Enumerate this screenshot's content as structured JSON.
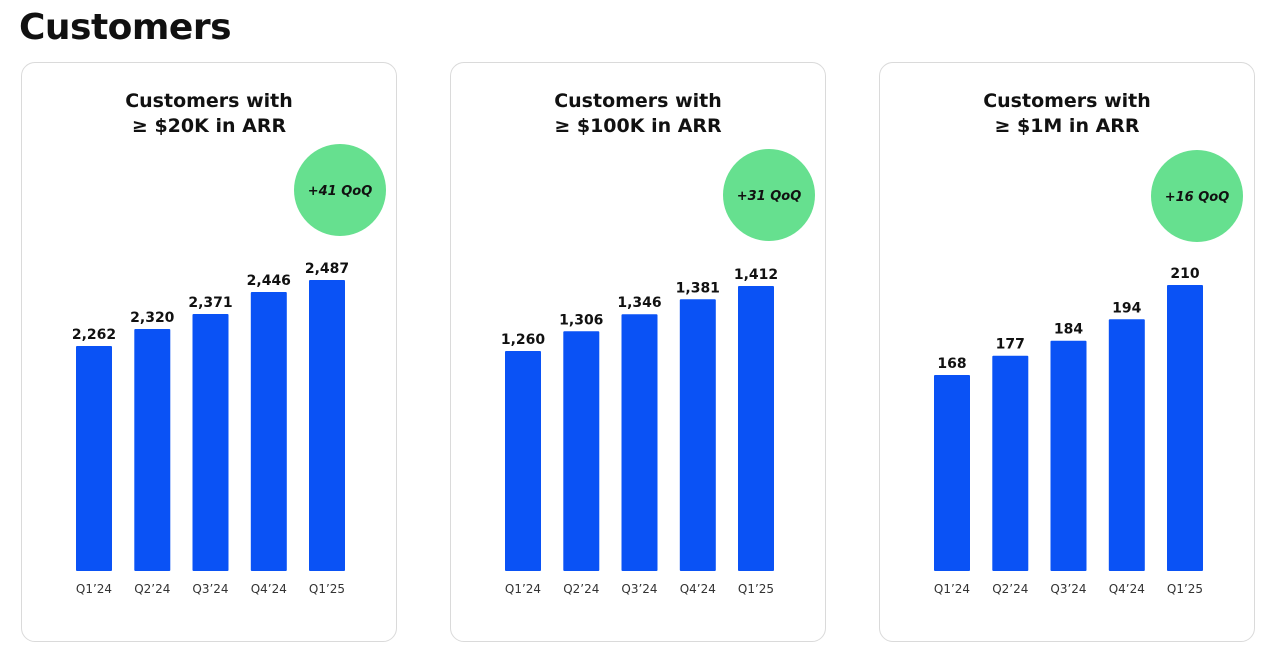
{
  "page": {
    "title": "Customers"
  },
  "colors": {
    "bar": "#0a52f5",
    "badge": "#66e08f",
    "text": "#111111",
    "tick": "#333333",
    "panel_border": "#dadada"
  },
  "chart_data": [
    {
      "type": "bar",
      "title_line1": "Customers with",
      "title_line2": "≥ $20K in ARR",
      "badge": "+41 QoQ",
      "categories": [
        "Q1’24",
        "Q2’24",
        "Q3’24",
        "Q4’24",
        "Q1’25"
      ],
      "values": [
        2262,
        2320,
        2371,
        2446,
        2487
      ],
      "value_labels": [
        "2,262",
        "2,320",
        "2,371",
        "2,446",
        "2,487"
      ],
      "grid": false
    },
    {
      "type": "bar",
      "title_line1": "Customers with",
      "title_line2": "≥ $100K in ARR",
      "badge": "+31 QoQ",
      "categories": [
        "Q1’24",
        "Q2’24",
        "Q3’24",
        "Q4’24",
        "Q1’25"
      ],
      "values": [
        1260,
        1306,
        1346,
        1381,
        1412
      ],
      "value_labels": [
        "1,260",
        "1,306",
        "1,346",
        "1,381",
        "1,412"
      ],
      "grid": false
    },
    {
      "type": "bar",
      "title_line1": "Customers with",
      "title_line2": "≥ $1M in ARR",
      "badge": "+16 QoQ",
      "categories": [
        "Q1’24",
        "Q2’24",
        "Q3’24",
        "Q4’24",
        "Q1’25"
      ],
      "values": [
        168,
        177,
        184,
        194,
        210
      ],
      "value_labels": [
        "168",
        "177",
        "184",
        "194",
        "210"
      ],
      "grid": false
    }
  ]
}
